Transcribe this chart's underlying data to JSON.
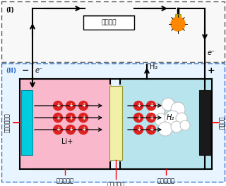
{
  "bg_color": "#ffffff",
  "organic_color": "#f9b8cc",
  "water_color": "#b8e4ee",
  "li_color": "#00cce0",
  "carbon_color": "#1a1a1a",
  "sep_color": "#f0f0a8",
  "ion_color": "#dd2222",
  "bubble_color": "#ffffff",
  "wire_color": "#000000",
  "label_I": "(I)",
  "label_II": "(II)",
  "label_current": "電流制御",
  "label_organic": "有機電解液",
  "label_water": "水性電解液",
  "label_solid": "固体電解質",
  "label_li_metal": "金属リチウム",
  "label_carbon": "炭素正極",
  "label_li_ion": "Li+",
  "label_eminus": "e⁻",
  "label_H2_up": "H₂",
  "label_H2_cloud": "H₂",
  "label_minus": "−",
  "label_plus": "+"
}
